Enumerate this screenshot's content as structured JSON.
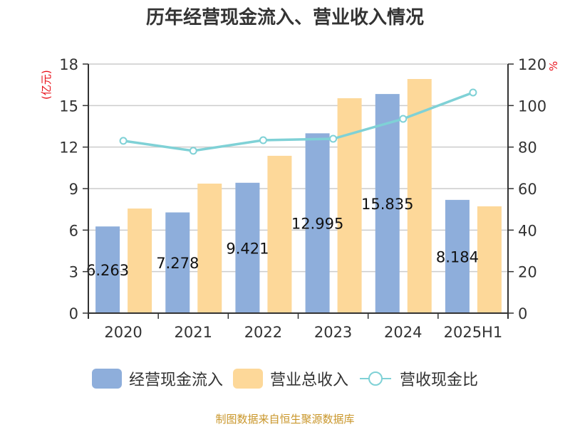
{
  "title": "历年经营现金流入、营业收入情况",
  "footer": "制图数据来自恒生聚源数据库",
  "left_axis_unit": "(亿元)",
  "right_axis_unit": "%",
  "legend": {
    "cash_inflow": "经营现金流入",
    "revenue": "营业总收入",
    "ratio": "营收现金比"
  },
  "colors": {
    "cash_inflow": "#8eaedb",
    "revenue": "#fdd899",
    "ratio": "#7fd1d6",
    "unit_label": "#e8101a",
    "footer": "#c9962a"
  },
  "chart_data": {
    "type": "bar",
    "title": "历年经营现金流入、营业收入情况",
    "categories": [
      "2020",
      "2021",
      "2022",
      "2023",
      "2024",
      "2025H1"
    ],
    "series": [
      {
        "name": "经营现金流入",
        "type": "bar",
        "axis": "left",
        "values": [
          6.263,
          7.278,
          9.421,
          12.995,
          15.835,
          8.184
        ],
        "labels": [
          "6.263",
          "7.278",
          "9.421",
          "12.995",
          "15.835",
          "8.184"
        ]
      },
      {
        "name": "营业总收入",
        "type": "bar",
        "axis": "left",
        "values": [
          7.56,
          9.36,
          11.37,
          15.53,
          16.92,
          7.72
        ]
      },
      {
        "name": "营收现金比",
        "type": "line",
        "axis": "right",
        "values": [
          83.0,
          78.2,
          83.3,
          84.0,
          93.6,
          106.3
        ]
      }
    ],
    "ylabel": "(亿元)",
    "ylabel_right": "%",
    "ylim": [
      0,
      18
    ],
    "yticks": [
      0,
      3,
      6,
      9,
      12,
      15,
      18
    ],
    "ylim_right": [
      0,
      120
    ],
    "yticks_right": [
      0,
      20,
      40,
      60,
      80,
      100,
      120
    ],
    "grid": true,
    "legend_position": "bottom"
  }
}
